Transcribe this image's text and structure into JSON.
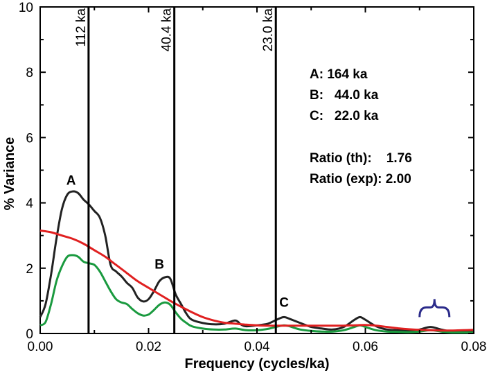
{
  "chart_data": {
    "type": "line",
    "xlabel": "Frequency (cycles/ka)",
    "ylabel": "% Variance",
    "xlim": [
      0,
      0.08
    ],
    "ylim": [
      0,
      10
    ],
    "x_ticks": [
      "0.00",
      "0.02",
      "0.04",
      "0.06",
      "0.08"
    ],
    "y_ticks": [
      "0",
      "2",
      "4",
      "6",
      "8",
      "10"
    ],
    "series": [
      {
        "color": "#222222",
        "points": [
          [
            0.0,
            0.5
          ],
          [
            0.001,
            0.9
          ],
          [
            0.002,
            1.8
          ],
          [
            0.003,
            2.9
          ],
          [
            0.004,
            3.8
          ],
          [
            0.005,
            4.25
          ],
          [
            0.006,
            4.35
          ],
          [
            0.007,
            4.3
          ],
          [
            0.008,
            4.1
          ],
          [
            0.009,
            3.95
          ],
          [
            0.01,
            3.75
          ],
          [
            0.011,
            3.55
          ],
          [
            0.012,
            3.0
          ],
          [
            0.013,
            2.1
          ],
          [
            0.014,
            1.9
          ],
          [
            0.015,
            1.75
          ],
          [
            0.016,
            1.55
          ],
          [
            0.017,
            1.4
          ],
          [
            0.018,
            1.1
          ],
          [
            0.019,
            0.98
          ],
          [
            0.02,
            1.05
          ],
          [
            0.021,
            1.3
          ],
          [
            0.022,
            1.6
          ],
          [
            0.023,
            1.72
          ],
          [
            0.024,
            1.68
          ],
          [
            0.025,
            1.2
          ],
          [
            0.026,
            0.9
          ],
          [
            0.027,
            0.6
          ],
          [
            0.028,
            0.42
          ],
          [
            0.03,
            0.32
          ],
          [
            0.032,
            0.28
          ],
          [
            0.034,
            0.3
          ],
          [
            0.036,
            0.4
          ],
          [
            0.037,
            0.28
          ],
          [
            0.038,
            0.22
          ],
          [
            0.04,
            0.25
          ],
          [
            0.042,
            0.3
          ],
          [
            0.044,
            0.45
          ],
          [
            0.045,
            0.5
          ],
          [
            0.046,
            0.45
          ],
          [
            0.048,
            0.32
          ],
          [
            0.05,
            0.2
          ],
          [
            0.052,
            0.15
          ],
          [
            0.054,
            0.12
          ],
          [
            0.056,
            0.2
          ],
          [
            0.058,
            0.42
          ],
          [
            0.059,
            0.5
          ],
          [
            0.06,
            0.42
          ],
          [
            0.062,
            0.22
          ],
          [
            0.064,
            0.12
          ],
          [
            0.066,
            0.1
          ],
          [
            0.068,
            0.08
          ],
          [
            0.07,
            0.12
          ],
          [
            0.072,
            0.2
          ],
          [
            0.074,
            0.12
          ],
          [
            0.076,
            0.06
          ],
          [
            0.078,
            0.06
          ],
          [
            0.08,
            0.05
          ]
        ]
      },
      {
        "color": "#1a9a3f",
        "points": [
          [
            0.0,
            0.25
          ],
          [
            0.001,
            0.35
          ],
          [
            0.002,
            0.9
          ],
          [
            0.003,
            1.6
          ],
          [
            0.004,
            2.05
          ],
          [
            0.005,
            2.35
          ],
          [
            0.006,
            2.4
          ],
          [
            0.007,
            2.35
          ],
          [
            0.008,
            2.2
          ],
          [
            0.009,
            2.15
          ],
          [
            0.01,
            2.1
          ],
          [
            0.011,
            1.9
          ],
          [
            0.012,
            1.6
          ],
          [
            0.013,
            1.3
          ],
          [
            0.014,
            1.05
          ],
          [
            0.015,
            0.95
          ],
          [
            0.016,
            0.9
          ],
          [
            0.017,
            0.75
          ],
          [
            0.018,
            0.62
          ],
          [
            0.019,
            0.55
          ],
          [
            0.02,
            0.58
          ],
          [
            0.021,
            0.72
          ],
          [
            0.022,
            0.88
          ],
          [
            0.023,
            0.95
          ],
          [
            0.024,
            0.88
          ],
          [
            0.025,
            0.65
          ],
          [
            0.026,
            0.45
          ],
          [
            0.027,
            0.32
          ],
          [
            0.028,
            0.22
          ],
          [
            0.03,
            0.15
          ],
          [
            0.032,
            0.12
          ],
          [
            0.034,
            0.12
          ],
          [
            0.036,
            0.15
          ],
          [
            0.038,
            0.1
          ],
          [
            0.04,
            0.1
          ],
          [
            0.042,
            0.14
          ],
          [
            0.044,
            0.22
          ],
          [
            0.045,
            0.25
          ],
          [
            0.046,
            0.22
          ],
          [
            0.048,
            0.12
          ],
          [
            0.05,
            0.08
          ],
          [
            0.052,
            0.06
          ],
          [
            0.054,
            0.06
          ],
          [
            0.056,
            0.1
          ],
          [
            0.058,
            0.2
          ],
          [
            0.059,
            0.25
          ],
          [
            0.06,
            0.2
          ],
          [
            0.062,
            0.1
          ],
          [
            0.064,
            0.06
          ],
          [
            0.066,
            0.05
          ],
          [
            0.068,
            0.04
          ],
          [
            0.07,
            0.06
          ],
          [
            0.072,
            0.1
          ],
          [
            0.074,
            0.06
          ],
          [
            0.076,
            0.03
          ],
          [
            0.078,
            0.03
          ],
          [
            0.08,
            0.03
          ]
        ]
      },
      {
        "color": "#e02020",
        "points": [
          [
            0.0,
            3.15
          ],
          [
            0.002,
            3.1
          ],
          [
            0.004,
            3.0
          ],
          [
            0.006,
            2.9
          ],
          [
            0.008,
            2.75
          ],
          [
            0.01,
            2.55
          ],
          [
            0.012,
            2.35
          ],
          [
            0.014,
            2.1
          ],
          [
            0.016,
            1.85
          ],
          [
            0.018,
            1.6
          ],
          [
            0.02,
            1.4
          ],
          [
            0.022,
            1.2
          ],
          [
            0.024,
            1.0
          ],
          [
            0.026,
            0.82
          ],
          [
            0.028,
            0.65
          ],
          [
            0.03,
            0.5
          ],
          [
            0.032,
            0.4
          ],
          [
            0.034,
            0.33
          ],
          [
            0.036,
            0.3
          ],
          [
            0.038,
            0.27
          ],
          [
            0.04,
            0.25
          ],
          [
            0.042,
            0.24
          ],
          [
            0.044,
            0.24
          ],
          [
            0.046,
            0.24
          ],
          [
            0.048,
            0.24
          ],
          [
            0.05,
            0.24
          ],
          [
            0.052,
            0.24
          ],
          [
            0.054,
            0.24
          ],
          [
            0.056,
            0.24
          ],
          [
            0.058,
            0.25
          ],
          [
            0.06,
            0.26
          ],
          [
            0.062,
            0.24
          ],
          [
            0.064,
            0.2
          ],
          [
            0.066,
            0.16
          ],
          [
            0.068,
            0.13
          ],
          [
            0.07,
            0.11
          ],
          [
            0.072,
            0.1
          ],
          [
            0.074,
            0.09
          ],
          [
            0.076,
            0.09
          ],
          [
            0.078,
            0.1
          ],
          [
            0.08,
            0.11
          ]
        ]
      }
    ],
    "vertical_lines": [
      {
        "x": 0.00893,
        "label": "112 ka"
      },
      {
        "x": 0.02475,
        "label": "40.4 ka"
      },
      {
        "x": 0.04348,
        "label": "23.0 ka"
      }
    ],
    "peak_labels": [
      {
        "text": "A",
        "x": 0.0057,
        "y": 4.55
      },
      {
        "text": "B",
        "x": 0.022,
        "y": 1.98
      },
      {
        "text": "C",
        "x": 0.045,
        "y": 0.82
      }
    ],
    "brace": {
      "x_start": 0.07,
      "x_end": 0.0755,
      "y": 0.8,
      "color": "#2b2b8a"
    },
    "annotations": [
      "A: 164 ka",
      "B:   44.0 ka",
      "C:   22.0 ka",
      "",
      "Ratio (th):    1.76",
      "Ratio (exp): 2.00"
    ]
  }
}
